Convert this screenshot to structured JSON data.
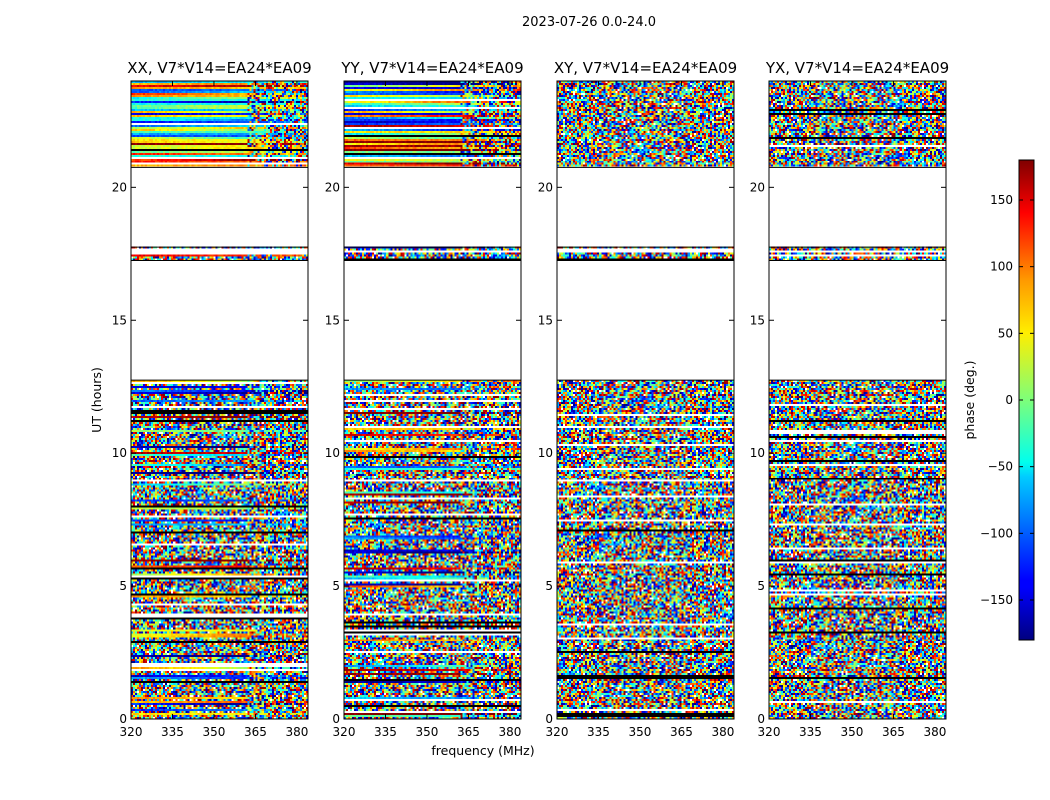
{
  "chart_data": {
    "type": "heatmap",
    "suptitle": "2023-07-26 0.0-24.0",
    "xlabel": "frequency (MHz)",
    "ylabel": "UT (hours)",
    "xlim": [
      320,
      384
    ],
    "ylim": [
      0,
      24
    ],
    "xticks": [
      320,
      335,
      350,
      365,
      380
    ],
    "xtick_labels": [
      "320",
      "335",
      "350",
      "365",
      "380"
    ],
    "yticks": [
      0,
      5,
      10,
      15,
      20
    ],
    "ytick_labels": [
      "0",
      "5",
      "10",
      "15",
      "20"
    ],
    "panels": [
      {
        "title": "XX, V7*V14=EA24*EA09",
        "coherent": true,
        "high_hue": "#ffd000"
      },
      {
        "title": "YY, V7*V14=EA24*EA09",
        "coherent": true,
        "high_hue": "#00a0ff"
      },
      {
        "title": "XY, V7*V14=EA24*EA09",
        "coherent": false
      },
      {
        "title": "YX, V7*V14=EA24*EA09",
        "coherent": false
      }
    ],
    "data_ranges_hours": [
      [
        0.0,
        12.75
      ],
      [
        17.25,
        17.55
      ],
      [
        17.6,
        17.75
      ],
      [
        20.75,
        24.0
      ]
    ],
    "blank_ranges_hours": [
      [
        12.75,
        17.25
      ],
      [
        17.75,
        20.75
      ]
    ],
    "colorbar": {
      "label": "phase (deg.)",
      "vmin": -180,
      "vmax": 180,
      "ticks": [
        150,
        100,
        50,
        0,
        -50,
        -100,
        -150
      ],
      "tick_labels": [
        "150",
        "100",
        "50",
        "0",
        "−50",
        "−100",
        "−150"
      ],
      "colormap": "jet"
    }
  }
}
